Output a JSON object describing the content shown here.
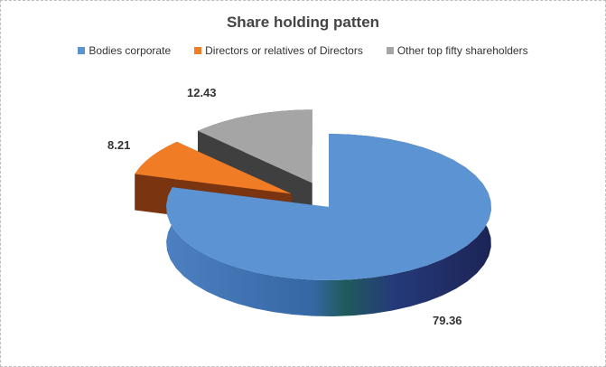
{
  "chart_data": {
    "type": "pie",
    "title": "Share holding patten",
    "categories": [
      "Bodies corporate",
      "Directors or relatives of Directors",
      "Other top fifty shareholders"
    ],
    "values": [
      79.36,
      8.21,
      12.43
    ],
    "colors": [
      "#5b93d3",
      "#f07c26",
      "#a5a5a5"
    ],
    "side_colors": [
      "#2c4f86",
      "#7a3410",
      "#3f3f3f"
    ],
    "exploded": [
      false,
      true,
      true
    ],
    "style": "3d",
    "legend_position": "top"
  }
}
